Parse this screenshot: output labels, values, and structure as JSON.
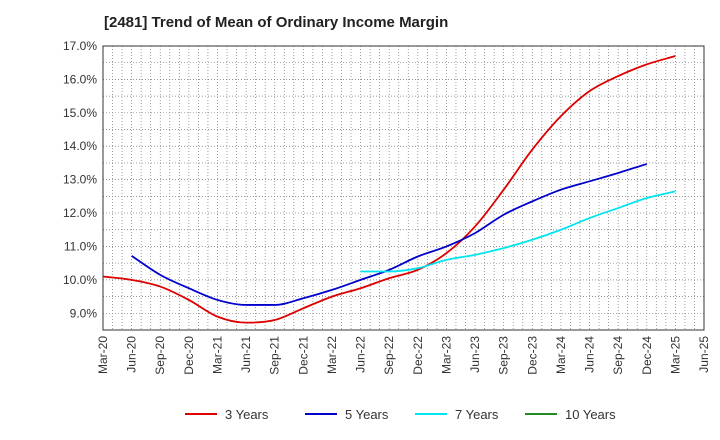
{
  "chart_data": {
    "type": "line",
    "title": "[2481]  Trend of Mean of Ordinary Income Margin",
    "xlabel": "",
    "ylabel": "",
    "ylim": [
      8.5,
      17.0
    ],
    "y_ticks": [
      9.0,
      10.0,
      11.0,
      12.0,
      13.0,
      14.0,
      15.0,
      16.0,
      17.0
    ],
    "y_tick_labels": [
      "9.0%",
      "10.0%",
      "11.0%",
      "12.0%",
      "13.0%",
      "14.0%",
      "15.0%",
      "16.0%",
      "17.0%"
    ],
    "x_tick_labels": [
      "Mar-20",
      "Jun-20",
      "Sep-20",
      "Dec-20",
      "Mar-21",
      "Jun-21",
      "Sep-21",
      "Dec-21",
      "Mar-22",
      "Jun-22",
      "Sep-22",
      "Dec-22",
      "Mar-23",
      "Jun-23",
      "Sep-23",
      "Dec-23",
      "Mar-24",
      "Jun-24",
      "Sep-24",
      "Dec-24",
      "Mar-25",
      "Jun-25"
    ],
    "grid": true,
    "legend_position": "bottom",
    "series": [
      {
        "name": "3 Years",
        "color": "#dd0000",
        "start_index": 0,
        "values": [
          10.1,
          10.0,
          9.8,
          9.4,
          8.9,
          8.72,
          8.8,
          9.15,
          9.5,
          9.75,
          10.05,
          10.3,
          10.8,
          11.6,
          12.7,
          13.9,
          14.9,
          15.65,
          16.1,
          16.45,
          16.7
        ]
      },
      {
        "name": "5 Years",
        "color": "#0000cc",
        "start_index": 1,
        "values": [
          10.72,
          10.15,
          9.75,
          9.4,
          9.25,
          9.25,
          9.45,
          9.7,
          10.0,
          10.3,
          10.7,
          11.0,
          11.4,
          11.95,
          12.35,
          12.7,
          12.95,
          13.2,
          13.47
        ]
      },
      {
        "name": "7 Years",
        "color": "#00e5ee",
        "start_index": 9,
        "values": [
          10.25,
          10.25,
          10.35,
          10.6,
          10.75,
          10.95,
          11.2,
          11.5,
          11.85,
          12.15,
          12.45,
          12.65
        ]
      },
      {
        "name": "10 Years",
        "color": "#228b22",
        "start_index": 0,
        "values": []
      }
    ]
  }
}
